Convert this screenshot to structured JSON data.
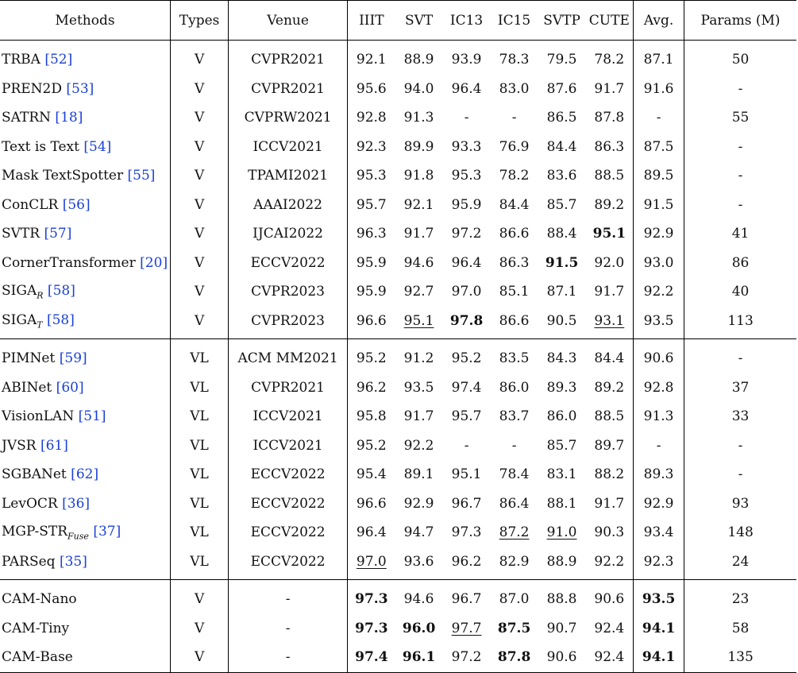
{
  "header": [
    "Methods",
    "Types",
    "Venue",
    "IIIT",
    "SVT",
    "IC13",
    "IC15",
    "SVTP",
    "CUTE",
    "Avg.",
    "Params (M)"
  ],
  "groups": [
    [
      {
        "name": "TRBA",
        "sub": "",
        "cite": "52",
        "type": "V",
        "venue": "CVPR2021",
        "vals": [
          "92.1",
          "88.9",
          "93.9",
          "78.3",
          "79.5",
          "78.2",
          "87.1",
          "50"
        ],
        "bold": [],
        "underline": []
      },
      {
        "name": "PREN2D",
        "sub": "",
        "cite": "53",
        "type": "V",
        "venue": "CVPR2021",
        "vals": [
          "95.6",
          "94.0",
          "96.4",
          "83.0",
          "87.6",
          "91.7",
          "91.6",
          "-"
        ],
        "bold": [],
        "underline": []
      },
      {
        "name": "SATRN",
        "sub": "",
        "cite": "18",
        "type": "V",
        "venue": "CVPRW2021",
        "vals": [
          "92.8",
          "91.3",
          "-",
          "-",
          "86.5",
          "87.8",
          "-",
          "55"
        ],
        "bold": [],
        "underline": []
      },
      {
        "name": "Text is Text",
        "sub": "",
        "cite": "54",
        "type": "V",
        "venue": "ICCV2021",
        "vals": [
          "92.3",
          "89.9",
          "93.3",
          "76.9",
          "84.4",
          "86.3",
          "87.5",
          "-"
        ],
        "bold": [],
        "underline": []
      },
      {
        "name": "Mask TextSpotter",
        "sub": "",
        "cite": "55",
        "type": "V",
        "venue": "TPAMI2021",
        "vals": [
          "95.3",
          "91.8",
          "95.3",
          "78.2",
          "83.6",
          "88.5",
          "89.5",
          "-"
        ],
        "bold": [],
        "underline": []
      },
      {
        "name": "ConCLR",
        "sub": "",
        "cite": "56",
        "type": "V",
        "venue": "AAAI2022",
        "vals": [
          "95.7",
          "92.1",
          "95.9",
          "84.4",
          "85.7",
          "89.2",
          "91.5",
          "-"
        ],
        "bold": [],
        "underline": []
      },
      {
        "name": "SVTR",
        "sub": "",
        "cite": "57",
        "type": "V",
        "venue": "IJCAI2022",
        "vals": [
          "96.3",
          "91.7",
          "97.2",
          "86.6",
          "88.4",
          "95.1",
          "92.9",
          "41"
        ],
        "bold": [
          5
        ],
        "underline": []
      },
      {
        "name": "CornerTransformer",
        "sub": "",
        "cite": "20",
        "type": "V",
        "venue": "ECCV2022",
        "vals": [
          "95.9",
          "94.6",
          "96.4",
          "86.3",
          "91.5",
          "92.0",
          "93.0",
          "86"
        ],
        "bold": [
          4
        ],
        "underline": []
      },
      {
        "name": "SIGA",
        "sub": "R",
        "cite": "58",
        "type": "V",
        "venue": "CVPR2023",
        "vals": [
          "95.9",
          "92.7",
          "97.0",
          "85.1",
          "87.1",
          "91.7",
          "92.2",
          "40"
        ],
        "bold": [],
        "underline": []
      },
      {
        "name": "SIGA",
        "sub": "T",
        "cite": "58",
        "type": "V",
        "venue": "CVPR2023",
        "vals": [
          "96.6",
          "95.1",
          "97.8",
          "86.6",
          "90.5",
          "93.1",
          "93.5",
          "113"
        ],
        "bold": [
          2
        ],
        "underline": [
          1,
          5
        ]
      }
    ],
    [
      {
        "name": "PIMNet",
        "sub": "",
        "cite": "59",
        "type": "VL",
        "venue": "ACM MM2021",
        "vals": [
          "95.2",
          "91.2",
          "95.2",
          "83.5",
          "84.3",
          "84.4",
          "90.6",
          "-"
        ],
        "bold": [],
        "underline": []
      },
      {
        "name": "ABINet",
        "sub": "",
        "cite": "60",
        "type": "VL",
        "venue": "CVPR2021",
        "vals": [
          "96.2",
          "93.5",
          "97.4",
          "86.0",
          "89.3",
          "89.2",
          "92.8",
          "37"
        ],
        "bold": [],
        "underline": []
      },
      {
        "name": "VisionLAN",
        "sub": "",
        "cite": "51",
        "type": "VL",
        "venue": "ICCV2021",
        "vals": [
          "95.8",
          "91.7",
          "95.7",
          "83.7",
          "86.0",
          "88.5",
          "91.3",
          "33"
        ],
        "bold": [],
        "underline": []
      },
      {
        "name": "JVSR",
        "sub": "",
        "cite": "61",
        "type": "VL",
        "venue": "ICCV2021",
        "vals": [
          "95.2",
          "92.2",
          "-",
          "-",
          "85.7",
          "89.7",
          "-",
          "-"
        ],
        "bold": [],
        "underline": []
      },
      {
        "name": "SGBANet",
        "sub": "",
        "cite": "62",
        "type": "VL",
        "venue": "ECCV2022",
        "vals": [
          "95.4",
          "89.1",
          "95.1",
          "78.4",
          "83.1",
          "88.2",
          "89.3",
          "-"
        ],
        "bold": [],
        "underline": []
      },
      {
        "name": "LevOCR",
        "sub": "",
        "cite": "36",
        "type": "VL",
        "venue": "ECCV2022",
        "vals": [
          "96.6",
          "92.9",
          "96.7",
          "86.4",
          "88.1",
          "91.7",
          "92.9",
          "93"
        ],
        "bold": [],
        "underline": []
      },
      {
        "name": "MGP-STR",
        "sub": "Fuse",
        "cite": "37",
        "type": "VL",
        "venue": "ECCV2022",
        "vals": [
          "96.4",
          "94.7",
          "97.3",
          "87.2",
          "91.0",
          "90.3",
          "93.4",
          "148"
        ],
        "bold": [],
        "underline": [
          3,
          4
        ]
      },
      {
        "name": "PARSeq",
        "sub": "",
        "cite": "35",
        "type": "VL",
        "venue": "ECCV2022",
        "vals": [
          "97.0",
          "93.6",
          "96.2",
          "82.9",
          "88.9",
          "92.2",
          "92.3",
          "24"
        ],
        "bold": [],
        "underline": [
          0
        ]
      }
    ],
    [
      {
        "name": "CAM-Nano",
        "sub": "",
        "cite": "",
        "type": "V",
        "venue": "-",
        "vals": [
          "97.3",
          "94.6",
          "96.7",
          "87.0",
          "88.8",
          "90.6",
          "93.5",
          "23"
        ],
        "bold": [
          0,
          6
        ],
        "underline": []
      },
      {
        "name": "CAM-Tiny",
        "sub": "",
        "cite": "",
        "type": "V",
        "venue": "-",
        "vals": [
          "97.3",
          "96.0",
          "97.7",
          "87.5",
          "90.7",
          "92.4",
          "94.1",
          "58"
        ],
        "bold": [
          0,
          1,
          3,
          6
        ],
        "underline": [
          2
        ]
      },
      {
        "name": "CAM-Base",
        "sub": "",
        "cite": "",
        "type": "V",
        "venue": "-",
        "vals": [
          "97.4",
          "96.1",
          "97.2",
          "87.8",
          "90.6",
          "92.4",
          "94.1",
          "135"
        ],
        "bold": [
          0,
          1,
          3,
          6
        ],
        "underline": []
      }
    ]
  ]
}
